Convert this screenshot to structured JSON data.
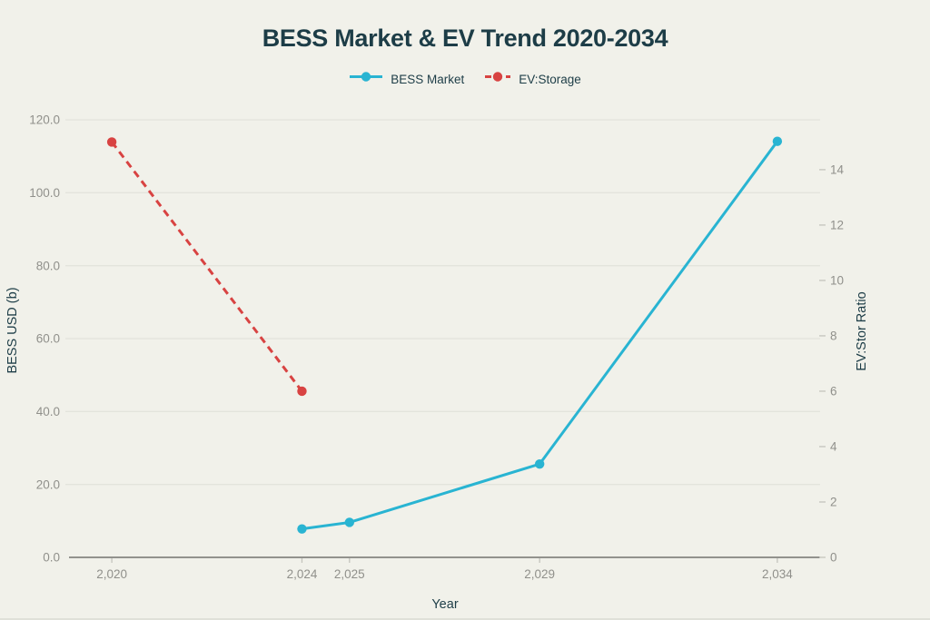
{
  "chart_data": {
    "type": "line",
    "title": "BESS Market & EV Trend 2020-2034",
    "x_axis": {
      "label": "Year",
      "range": [
        2019.1,
        2034.9
      ],
      "ticks": [
        {
          "value": 2020,
          "label": "2,020"
        },
        {
          "value": 2024,
          "label": "2,024"
        },
        {
          "value": 2025,
          "label": "2,025"
        },
        {
          "value": 2029,
          "label": "2,029"
        },
        {
          "value": 2034,
          "label": "2,034"
        }
      ]
    },
    "left_axis": {
      "label": "BESS USD (b)",
      "range": [
        0,
        120
      ],
      "ticks": [
        {
          "value": 0,
          "label": "0.0"
        },
        {
          "value": 20,
          "label": "20.0"
        },
        {
          "value": 40,
          "label": "40.0"
        },
        {
          "value": 60,
          "label": "60.0"
        },
        {
          "value": 80,
          "label": "80.0"
        },
        {
          "value": 100,
          "label": "100.0"
        },
        {
          "value": 120,
          "label": "120.0"
        }
      ]
    },
    "right_axis": {
      "label": "EV:Stor Ratio",
      "range": [
        0,
        15.8
      ],
      "ticks": [
        {
          "value": 0,
          "label": "0"
        },
        {
          "value": 2,
          "label": "2"
        },
        {
          "value": 4,
          "label": "4"
        },
        {
          "value": 6,
          "label": "6"
        },
        {
          "value": 8,
          "label": "8"
        },
        {
          "value": 10,
          "label": "10"
        },
        {
          "value": 12,
          "label": "12"
        },
        {
          "value": 14,
          "label": "14"
        }
      ]
    },
    "series": [
      {
        "name": "BESS Market",
        "axis": "left",
        "color": "#29b4d2",
        "line_style": "solid",
        "x": [
          2024,
          2025,
          2029,
          2034
        ],
        "y": [
          7.8,
          9.6,
          25.6,
          114.1
        ]
      },
      {
        "name": "EV:Storage",
        "axis": "right",
        "color": "#d84342",
        "line_style": "dashed",
        "x": [
          2020,
          2024
        ],
        "y": [
          15,
          6
        ]
      }
    ],
    "legend": {
      "position": "top",
      "items": [
        {
          "label": "BESS Market",
          "color": "#29b4d2",
          "dashed": false
        },
        {
          "label": "EV:Storage",
          "color": "#d84342",
          "dashed": true
        }
      ]
    },
    "grid": true,
    "colors": {
      "background": "#f1f1ea",
      "text": "#1d3d47",
      "tick_labels": "#90908b",
      "gridlines": "#e3e4dc",
      "axis_line": "#73736e"
    }
  }
}
